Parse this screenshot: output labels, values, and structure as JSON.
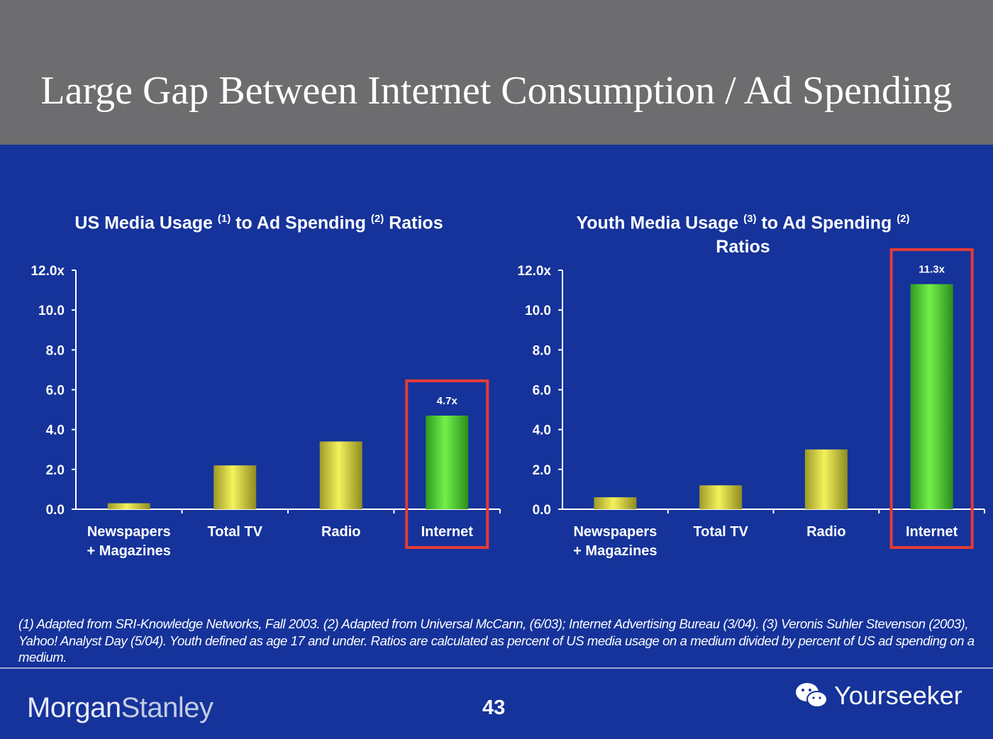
{
  "title": "Large Gap Between Internet Consumption / Ad Spending",
  "chart_data": [
    {
      "type": "bar",
      "title_parts": [
        "US Media Usage",
        "(1)",
        "to Ad Spending",
        "(2)",
        "Ratios"
      ],
      "categories": [
        [
          "Newspapers",
          "+ Magazines"
        ],
        [
          "Total TV"
        ],
        [
          "Radio"
        ],
        [
          "Internet"
        ]
      ],
      "values": [
        0.3,
        2.2,
        3.4,
        4.7
      ],
      "data_labels": [
        "",
        "",
        "",
        "4.7x"
      ],
      "highlight_index": 3,
      "ylim": [
        0,
        12
      ],
      "yticks": [
        "0.0",
        "2.0",
        "4.0",
        "6.0",
        "8.0",
        "10.0",
        "12.0x"
      ],
      "grid": false,
      "colors": {
        "bar": "#e9e84a",
        "highlight": "#5fe33a",
        "box": "#e53b36"
      }
    },
    {
      "type": "bar",
      "title_parts": [
        "Youth Media Usage",
        "(3)",
        "to Ad Spending",
        "(2)",
        "Ratios"
      ],
      "categories": [
        [
          "Newspapers",
          "+ Magazines"
        ],
        [
          "Total TV"
        ],
        [
          "Radio"
        ],
        [
          "Internet"
        ]
      ],
      "values": [
        0.6,
        1.2,
        3.0,
        11.3
      ],
      "data_labels": [
        "",
        "",
        "",
        "11.3x"
      ],
      "highlight_index": 3,
      "ylim": [
        0,
        12
      ],
      "yticks": [
        "0.0",
        "2.0",
        "4.0",
        "6.0",
        "8.0",
        "10.0",
        "12.0x"
      ],
      "grid": false,
      "colors": {
        "bar": "#e9e84a",
        "highlight": "#5fe33a",
        "box": "#e53b36"
      }
    }
  ],
  "footnote": "(1) Adapted from SRI-Knowledge Networks, Fall 2003.  (2) Adapted from Universal McCann, (6/03); Internet Advertising Bureau (3/04). (3) Veronis Suhler Stevenson (2003), Yahoo! Analyst Day (5/04).  Youth defined as age 17 and under.  Ratios are calculated as percent of US media usage on a medium divided by percent of US ad spending on a medium.",
  "footer": {
    "logo": {
      "left": "Morgan",
      "right": "Stanley"
    },
    "page_number": "43",
    "watermark": "Yourseeker",
    "watermark_icon": "wechat-icon"
  }
}
